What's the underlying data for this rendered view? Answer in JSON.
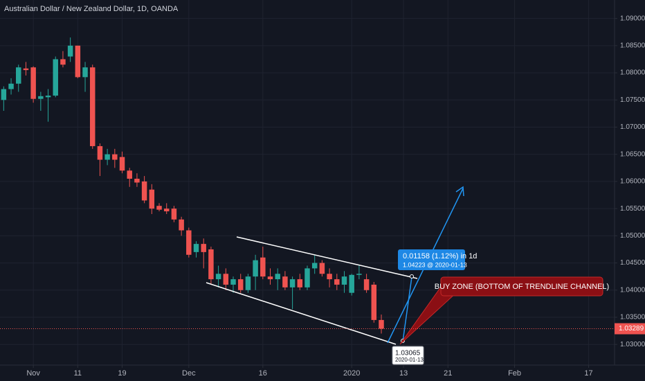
{
  "chart_data": {
    "type": "candlestick",
    "title": "Australian Dollar / New Zealand Dollar, 1D, OANDA",
    "up_color": "#26a69a",
    "down_color": "#ef5350",
    "grid": true,
    "open": [
      1.075,
      1.077,
      1.078,
      1.0808,
      1.081,
      1.0752,
      1.0755,
      1.0758,
      1.0825,
      1.083,
      1.085,
      1.0792,
      1.081,
      1.0665,
      1.064,
      1.065,
      1.0645,
      1.062,
      1.0605,
      1.06,
      1.0585,
      1.0555,
      1.055,
      1.055,
      1.053,
      1.051,
      1.047,
      1.0485,
      1.0475,
      1.042,
      1.043,
      1.041,
      1.042,
      1.04,
      1.0425,
      1.046,
      1.0425,
      1.042,
      1.0425,
      1.0405,
      1.042,
      1.0405,
      1.044,
      1.045,
      1.043,
      1.042,
      1.041,
      1.0395,
      1.0428,
      1.042,
      1.041,
      1.0345
    ],
    "high": [
      1.0775,
      1.079,
      1.0815,
      1.082,
      1.0812,
      1.0765,
      1.077,
      1.083,
      1.084,
      1.0865,
      1.085,
      1.082,
      1.0815,
      1.067,
      1.066,
      1.066,
      1.0655,
      1.0625,
      1.0615,
      1.061,
      1.0595,
      1.056,
      1.056,
      1.0555,
      1.0535,
      1.0515,
      1.049,
      1.0495,
      1.048,
      1.0445,
      1.044,
      1.0425,
      1.043,
      1.043,
      1.0465,
      1.048,
      1.044,
      1.044,
      1.0435,
      1.0425,
      1.043,
      1.0445,
      1.0465,
      1.0455,
      1.044,
      1.043,
      1.0435,
      1.043,
      1.0445,
      1.043,
      1.0415,
      1.0355
    ],
    "low": [
      1.073,
      1.076,
      1.0765,
      1.0795,
      1.0745,
      1.073,
      1.071,
      1.0755,
      1.081,
      1.082,
      1.079,
      1.0765,
      1.066,
      1.061,
      1.063,
      1.0625,
      1.0615,
      1.059,
      1.059,
      1.056,
      1.054,
      1.0545,
      1.054,
      1.0525,
      1.05,
      1.046,
      1.046,
      1.044,
      1.041,
      1.0405,
      1.04,
      1.0395,
      1.0395,
      1.0395,
      1.04,
      1.042,
      1.041,
      1.04,
      1.04,
      1.0365,
      1.04,
      1.04,
      1.043,
      1.0425,
      1.0405,
      1.04,
      1.0395,
      1.039,
      1.042,
      1.0395,
      1.034,
      1.032
    ],
    "close": [
      1.077,
      1.078,
      1.081,
      1.0805,
      1.0752,
      1.0757,
      1.0758,
      1.0825,
      1.0815,
      1.085,
      1.0792,
      1.081,
      1.0665,
      1.064,
      1.065,
      1.064,
      1.062,
      1.0605,
      1.0598,
      1.0565,
      1.055,
      1.0548,
      1.0545,
      1.053,
      1.051,
      1.0465,
      1.0485,
      1.047,
      1.042,
      1.043,
      1.041,
      1.042,
      1.04,
      1.0425,
      1.0455,
      1.0425,
      1.042,
      1.043,
      1.0405,
      1.042,
      1.0405,
      1.044,
      1.045,
      1.043,
      1.042,
      1.041,
      1.0425,
      1.0428,
      1.043,
      1.04,
      1.0345,
      1.0329
    ],
    "xlim": [
      -0.5,
      82.5
    ],
    "xticks": [
      {
        "value": 4,
        "label": "Nov"
      },
      {
        "value": 10,
        "label": "11"
      },
      {
        "value": 16,
        "label": "19"
      },
      {
        "value": 25,
        "label": "Dec"
      },
      {
        "value": 35,
        "label": "16"
      },
      {
        "value": 47,
        "label": "2020"
      },
      {
        "value": 54,
        "label": "13"
      },
      {
        "value": 60,
        "label": "21"
      },
      {
        "value": 69,
        "label": "Feb"
      },
      {
        "value": 79,
        "label": "17"
      }
    ],
    "ylim": [
      1.0262,
      1.0934
    ],
    "yticks": [
      {
        "value": 1.03,
        "label": "1.03000"
      },
      {
        "value": 1.035,
        "label": "1.03500"
      },
      {
        "value": 1.04,
        "label": "1.04000"
      },
      {
        "value": 1.045,
        "label": "1.04500"
      },
      {
        "value": 1.05,
        "label": "1.05000"
      },
      {
        "value": 1.055,
        "label": "1.05500"
      },
      {
        "value": 1.06,
        "label": "1.06000"
      },
      {
        "value": 1.065,
        "label": "1.06500"
      },
      {
        "value": 1.07,
        "label": "1.07000"
      },
      {
        "value": 1.075,
        "label": "1.07500"
      },
      {
        "value": 1.08,
        "label": "1.08000"
      },
      {
        "value": 1.085,
        "label": "1.08500"
      },
      {
        "value": 1.09,
        "label": "1.09000"
      }
    ],
    "last_price": 1.03289,
    "annotations": {
      "measure_main": "0.01158 (1.12%) in 1d",
      "measure_sub": "1.04223 @ 2020-01-13",
      "point_price": "1.03065",
      "point_date": "2020-01-13",
      "callout": "BUY ZONE (BOTTOM OF TRENDLINE CHANNEL)"
    }
  }
}
